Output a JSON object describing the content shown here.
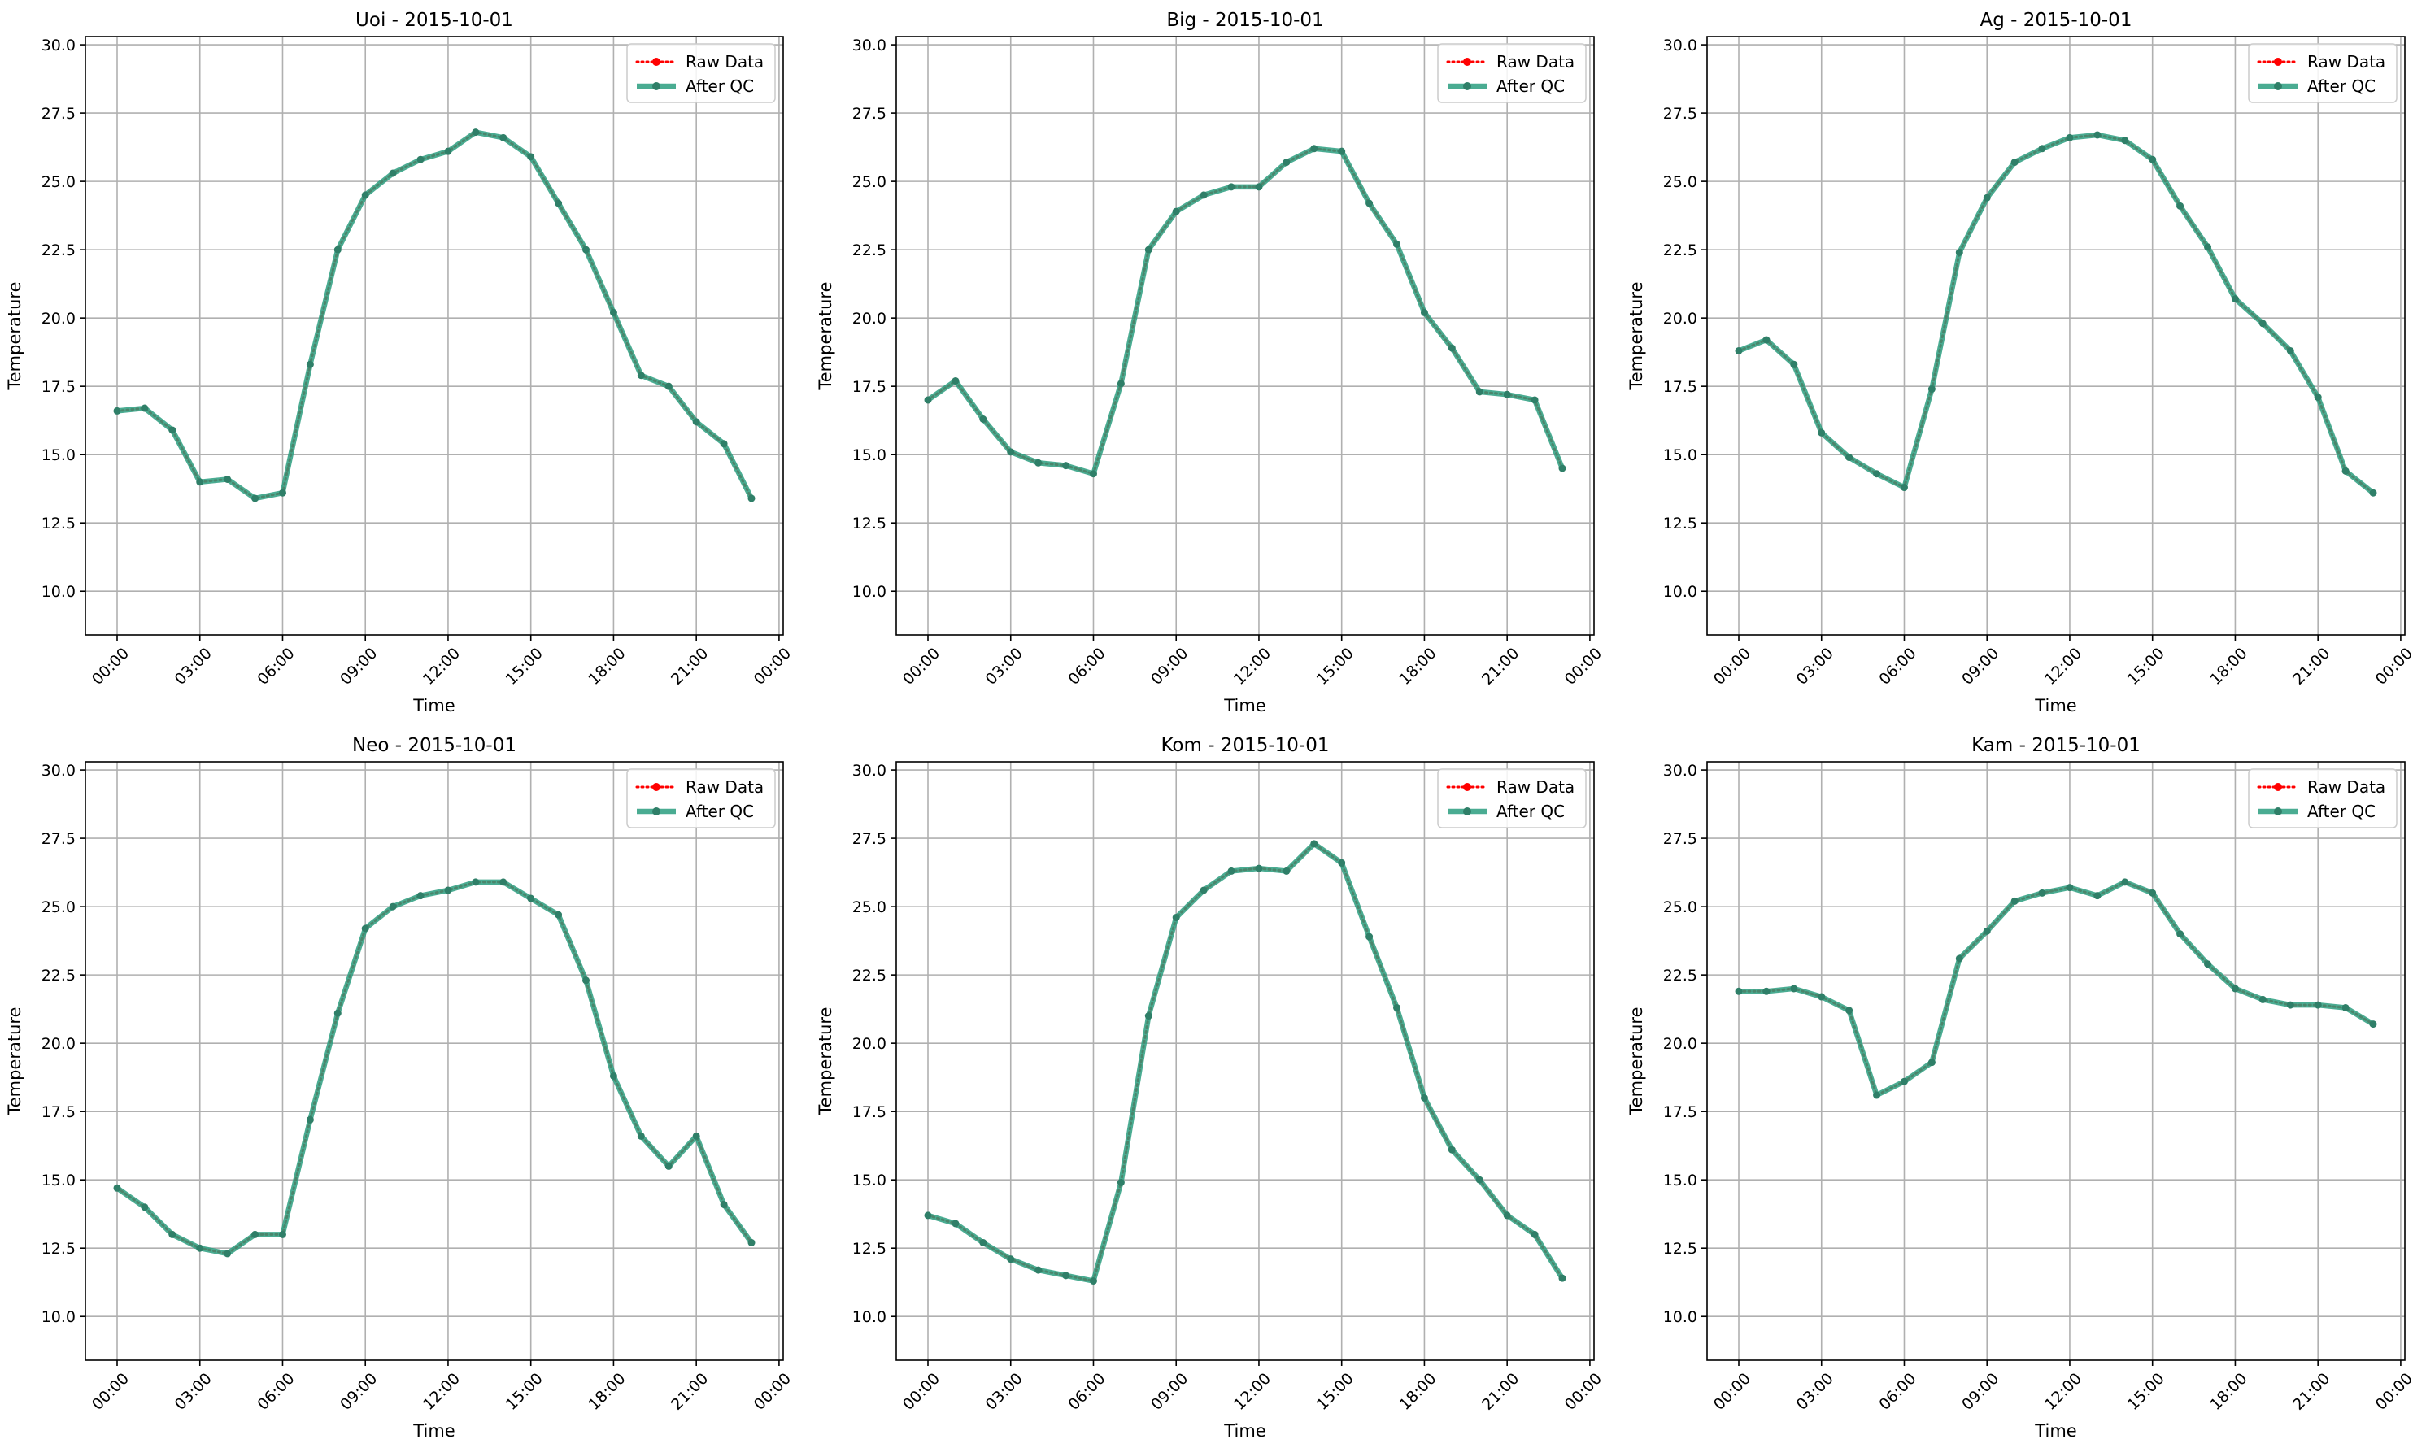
{
  "figure": {
    "background": "#ffffff"
  },
  "legend_labels": {
    "raw": "Raw Data",
    "qc": "After QC"
  },
  "colors": {
    "raw": "#ff0000",
    "qc": "#2a9d7f",
    "qc_marker": "#2f7f68",
    "grid": "#b0b0b0"
  },
  "chart_data": [
    {
      "type": "line",
      "title": "Uoi - 2015-10-01",
      "xlabel": "Time",
      "ylabel": "Temperature",
      "xlim": [
        -1.15,
        24.15
      ],
      "ylim": [
        8.4,
        30.3
      ],
      "x_ticks": [
        0,
        3,
        6,
        9,
        12,
        15,
        18,
        21,
        24
      ],
      "x_tick_labels": [
        "00:00",
        "03:00",
        "06:00",
        "09:00",
        "12:00",
        "15:00",
        "18:00",
        "21:00",
        "00:00"
      ],
      "y_ticks": [
        10.0,
        12.5,
        15.0,
        17.5,
        20.0,
        22.5,
        25.0,
        27.5,
        30.0
      ],
      "y_tick_labels": [
        "10.0",
        "12.5",
        "15.0",
        "17.5",
        "20.0",
        "22.5",
        "25.0",
        "27.5",
        "30.0"
      ],
      "grid": true,
      "legend_position": "top-right",
      "x": [
        0,
        1,
        2,
        3,
        4,
        5,
        6,
        7,
        8,
        9,
        10,
        11,
        12,
        13,
        14,
        15,
        16,
        17,
        18,
        19,
        20,
        21,
        22,
        23
      ],
      "series": [
        {
          "name": "Raw Data",
          "values": [
            16.6,
            16.7,
            15.9,
            14.0,
            14.1,
            13.4,
            13.6,
            18.3,
            22.5,
            24.5,
            25.3,
            25.8,
            26.1,
            26.8,
            26.6,
            25.9,
            24.2,
            22.5,
            20.2,
            17.9,
            17.5,
            16.2,
            15.4,
            13.4
          ]
        },
        {
          "name": "After QC",
          "values": [
            16.6,
            16.7,
            15.9,
            14.0,
            14.1,
            13.4,
            13.6,
            18.3,
            22.5,
            24.5,
            25.3,
            25.8,
            26.1,
            26.8,
            26.6,
            25.9,
            24.2,
            22.5,
            20.2,
            17.9,
            17.5,
            16.2,
            15.4,
            13.4
          ]
        }
      ]
    },
    {
      "type": "line",
      "title": "Big - 2015-10-01",
      "xlabel": "Time",
      "ylabel": "Temperature",
      "xlim": [
        -1.15,
        24.15
      ],
      "ylim": [
        8.4,
        30.3
      ],
      "x_ticks": [
        0,
        3,
        6,
        9,
        12,
        15,
        18,
        21,
        24
      ],
      "x_tick_labels": [
        "00:00",
        "03:00",
        "06:00",
        "09:00",
        "12:00",
        "15:00",
        "18:00",
        "21:00",
        "00:00"
      ],
      "y_ticks": [
        10.0,
        12.5,
        15.0,
        17.5,
        20.0,
        22.5,
        25.0,
        27.5,
        30.0
      ],
      "y_tick_labels": [
        "10.0",
        "12.5",
        "15.0",
        "17.5",
        "20.0",
        "22.5",
        "25.0",
        "27.5",
        "30.0"
      ],
      "grid": true,
      "legend_position": "top-right",
      "x": [
        0,
        1,
        2,
        3,
        4,
        5,
        6,
        7,
        8,
        9,
        10,
        11,
        12,
        13,
        14,
        15,
        16,
        17,
        18,
        19,
        20,
        21,
        22,
        23
      ],
      "series": [
        {
          "name": "Raw Data",
          "values": [
            17.0,
            17.7,
            16.3,
            15.1,
            14.7,
            14.6,
            14.3,
            17.6,
            22.5,
            23.9,
            24.5,
            24.8,
            24.8,
            25.7,
            26.2,
            26.1,
            24.2,
            22.7,
            20.2,
            18.9,
            17.3,
            17.2,
            17.0,
            14.5
          ]
        },
        {
          "name": "After QC",
          "values": [
            17.0,
            17.7,
            16.3,
            15.1,
            14.7,
            14.6,
            14.3,
            17.6,
            22.5,
            23.9,
            24.5,
            24.8,
            24.8,
            25.7,
            26.2,
            26.1,
            24.2,
            22.7,
            20.2,
            18.9,
            17.3,
            17.2,
            17.0,
            14.5
          ]
        }
      ]
    },
    {
      "type": "line",
      "title": "Ag - 2015-10-01",
      "xlabel": "Time",
      "ylabel": "Temperature",
      "xlim": [
        -1.15,
        24.15
      ],
      "ylim": [
        8.4,
        30.3
      ],
      "x_ticks": [
        0,
        3,
        6,
        9,
        12,
        15,
        18,
        21,
        24
      ],
      "x_tick_labels": [
        "00:00",
        "03:00",
        "06:00",
        "09:00",
        "12:00",
        "15:00",
        "18:00",
        "21:00",
        "00:00"
      ],
      "y_ticks": [
        10.0,
        12.5,
        15.0,
        17.5,
        20.0,
        22.5,
        25.0,
        27.5,
        30.0
      ],
      "y_tick_labels": [
        "10.0",
        "12.5",
        "15.0",
        "17.5",
        "20.0",
        "22.5",
        "25.0",
        "27.5",
        "30.0"
      ],
      "grid": true,
      "legend_position": "top-right",
      "x": [
        0,
        1,
        2,
        3,
        4,
        5,
        6,
        7,
        8,
        9,
        10,
        11,
        12,
        13,
        14,
        15,
        16,
        17,
        18,
        19,
        20,
        21,
        22,
        23
      ],
      "series": [
        {
          "name": "Raw Data",
          "values": [
            18.8,
            19.2,
            18.3,
            15.8,
            14.9,
            14.3,
            13.8,
            17.4,
            22.4,
            24.4,
            25.7,
            26.2,
            26.6,
            26.7,
            26.5,
            25.8,
            24.1,
            22.6,
            20.7,
            19.8,
            18.8,
            17.1,
            14.4,
            13.6
          ]
        },
        {
          "name": "After QC",
          "values": [
            18.8,
            19.2,
            18.3,
            15.8,
            14.9,
            14.3,
            13.8,
            17.4,
            22.4,
            24.4,
            25.7,
            26.2,
            26.6,
            26.7,
            26.5,
            25.8,
            24.1,
            22.6,
            20.7,
            19.8,
            18.8,
            17.1,
            14.4,
            13.6
          ]
        }
      ]
    },
    {
      "type": "line",
      "title": "Neo - 2015-10-01",
      "xlabel": "Time",
      "ylabel": "Temperature",
      "xlim": [
        -1.15,
        24.15
      ],
      "ylim": [
        8.4,
        30.3
      ],
      "x_ticks": [
        0,
        3,
        6,
        9,
        12,
        15,
        18,
        21,
        24
      ],
      "x_tick_labels": [
        "00:00",
        "03:00",
        "06:00",
        "09:00",
        "12:00",
        "15:00",
        "18:00",
        "21:00",
        "00:00"
      ],
      "y_ticks": [
        10.0,
        12.5,
        15.0,
        17.5,
        20.0,
        22.5,
        25.0,
        27.5,
        30.0
      ],
      "y_tick_labels": [
        "10.0",
        "12.5",
        "15.0",
        "17.5",
        "20.0",
        "22.5",
        "25.0",
        "27.5",
        "30.0"
      ],
      "grid": true,
      "legend_position": "top-right",
      "x": [
        0,
        1,
        2,
        3,
        4,
        5,
        6,
        7,
        8,
        9,
        10,
        11,
        12,
        13,
        14,
        15,
        16,
        17,
        18,
        19,
        20,
        21,
        22,
        23
      ],
      "series": [
        {
          "name": "Raw Data",
          "values": [
            14.7,
            14.0,
            13.0,
            12.5,
            12.3,
            13.0,
            13.0,
            17.2,
            21.1,
            24.2,
            25.0,
            25.4,
            25.6,
            25.9,
            25.9,
            25.3,
            24.7,
            22.3,
            18.8,
            16.6,
            15.5,
            16.6,
            14.1,
            12.7
          ]
        },
        {
          "name": "After QC",
          "values": [
            14.7,
            14.0,
            13.0,
            12.5,
            12.3,
            13.0,
            13.0,
            17.2,
            21.1,
            24.2,
            25.0,
            25.4,
            25.6,
            25.9,
            25.9,
            25.3,
            24.7,
            22.3,
            18.8,
            16.6,
            15.5,
            16.6,
            14.1,
            12.7
          ]
        }
      ]
    },
    {
      "type": "line",
      "title": "Kom - 2015-10-01",
      "xlabel": "Time",
      "ylabel": "Temperature",
      "xlim": [
        -1.15,
        24.15
      ],
      "ylim": [
        8.4,
        30.3
      ],
      "x_ticks": [
        0,
        3,
        6,
        9,
        12,
        15,
        18,
        21,
        24
      ],
      "x_tick_labels": [
        "00:00",
        "03:00",
        "06:00",
        "09:00",
        "12:00",
        "15:00",
        "18:00",
        "21:00",
        "00:00"
      ],
      "y_ticks": [
        10.0,
        12.5,
        15.0,
        17.5,
        20.0,
        22.5,
        25.0,
        27.5,
        30.0
      ],
      "y_tick_labels": [
        "10.0",
        "12.5",
        "15.0",
        "17.5",
        "20.0",
        "22.5",
        "25.0",
        "27.5",
        "30.0"
      ],
      "grid": true,
      "legend_position": "top-right",
      "x": [
        0,
        1,
        2,
        3,
        4,
        5,
        6,
        7,
        8,
        9,
        10,
        11,
        12,
        13,
        14,
        15,
        16,
        17,
        18,
        19,
        20,
        21,
        22,
        23
      ],
      "series": [
        {
          "name": "Raw Data",
          "values": [
            13.7,
            13.4,
            12.7,
            12.1,
            11.7,
            11.5,
            11.3,
            14.9,
            21.0,
            24.6,
            25.6,
            26.3,
            26.4,
            26.3,
            27.3,
            26.6,
            23.9,
            21.3,
            18.0,
            16.1,
            15.0,
            13.7,
            13.0,
            11.4
          ]
        },
        {
          "name": "After QC",
          "values": [
            13.7,
            13.4,
            12.7,
            12.1,
            11.7,
            11.5,
            11.3,
            14.9,
            21.0,
            24.6,
            25.6,
            26.3,
            26.4,
            26.3,
            27.3,
            26.6,
            23.9,
            21.3,
            18.0,
            16.1,
            15.0,
            13.7,
            13.0,
            11.4
          ]
        }
      ]
    },
    {
      "type": "line",
      "title": "Kam - 2015-10-01",
      "xlabel": "Time",
      "ylabel": "Temperature",
      "xlim": [
        -1.15,
        24.15
      ],
      "ylim": [
        8.4,
        30.3
      ],
      "x_ticks": [
        0,
        3,
        6,
        9,
        12,
        15,
        18,
        21,
        24
      ],
      "x_tick_labels": [
        "00:00",
        "03:00",
        "06:00",
        "09:00",
        "12:00",
        "15:00",
        "18:00",
        "21:00",
        "00:00"
      ],
      "y_ticks": [
        10.0,
        12.5,
        15.0,
        17.5,
        20.0,
        22.5,
        25.0,
        27.5,
        30.0
      ],
      "y_tick_labels": [
        "10.0",
        "12.5",
        "15.0",
        "17.5",
        "20.0",
        "22.5",
        "25.0",
        "27.5",
        "30.0"
      ],
      "grid": true,
      "legend_position": "top-right",
      "x": [
        0,
        1,
        2,
        3,
        4,
        5,
        6,
        7,
        8,
        9,
        10,
        11,
        12,
        13,
        14,
        15,
        16,
        17,
        18,
        19,
        20,
        21,
        22,
        23
      ],
      "series": [
        {
          "name": "Raw Data",
          "values": [
            21.9,
            21.9,
            22.0,
            21.7,
            21.2,
            18.1,
            18.6,
            19.3,
            23.1,
            24.1,
            25.2,
            25.5,
            25.7,
            25.4,
            25.9,
            25.5,
            24.0,
            22.9,
            22.0,
            21.6,
            21.4,
            21.4,
            21.3,
            20.7
          ]
        },
        {
          "name": "After QC",
          "values": [
            21.9,
            21.9,
            22.0,
            21.7,
            21.2,
            18.1,
            18.6,
            19.3,
            23.1,
            24.1,
            25.2,
            25.5,
            25.7,
            25.4,
            25.9,
            25.5,
            24.0,
            22.9,
            22.0,
            21.6,
            21.4,
            21.4,
            21.3,
            20.7
          ]
        }
      ]
    }
  ]
}
